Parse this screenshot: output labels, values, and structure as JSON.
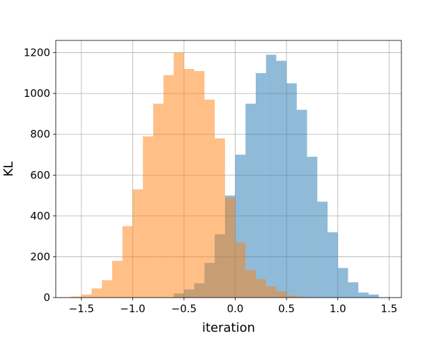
{
  "chart_data": {
    "type": "bar",
    "title": "",
    "xlabel": "iteration",
    "ylabel": "KL",
    "xlim": [
      -1.75,
      1.62
    ],
    "ylim": [
      0,
      1260
    ],
    "xticks": [
      -1.5,
      -1.0,
      -0.5,
      0.0,
      0.5,
      1.0,
      1.5
    ],
    "xtick_labels": [
      "−1.5",
      "−1.0",
      "−0.5",
      "0.0",
      "0.5",
      "1.0",
      "1.5"
    ],
    "yticks": [
      0,
      200,
      400,
      600,
      800,
      1000,
      1200
    ],
    "ytick_labels": [
      "0",
      "200",
      "400",
      "600",
      "800",
      "1000",
      "1200"
    ],
    "grid": true,
    "series": [
      {
        "color": "#1f77b4",
        "opacity": 0.5,
        "bin_width": 0.1,
        "bin_starts": [
          -0.6,
          -0.5,
          -0.4,
          -0.3,
          -0.2,
          -0.1,
          0.0,
          0.1,
          0.2,
          0.3,
          0.4,
          0.5,
          0.6,
          0.7,
          0.8,
          0.9,
          1.0,
          1.1,
          1.2,
          1.3
        ],
        "values": [
          20,
          40,
          70,
          170,
          310,
          500,
          700,
          950,
          1100,
          1190,
          1160,
          1050,
          920,
          690,
          470,
          320,
          145,
          75,
          25,
          15
        ]
      },
      {
        "color": "#ff7f0e",
        "opacity": 0.5,
        "bin_width": 0.1,
        "bin_starts": [
          -1.6,
          -1.5,
          -1.4,
          -1.3,
          -1.2,
          -1.1,
          -1.0,
          -0.9,
          -0.8,
          -0.7,
          -0.6,
          -0.5,
          -0.4,
          -0.3,
          -0.2,
          -0.1,
          0.0,
          0.1,
          0.2,
          0.3,
          0.4,
          0.5,
          0.6
        ],
        "values": [
          5,
          15,
          45,
          85,
          180,
          350,
          530,
          790,
          950,
          1090,
          1200,
          1120,
          1110,
          970,
          780,
          490,
          270,
          135,
          90,
          55,
          30,
          10,
          5
        ]
      }
    ]
  }
}
